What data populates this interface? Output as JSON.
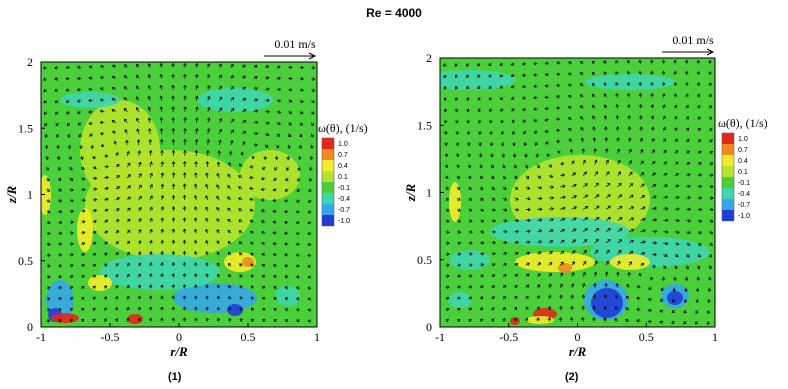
{
  "figure_title": "Re = 4000",
  "chart_data": [
    {
      "type": "heatmap",
      "panel_label": "(1)",
      "xlabel": "r/R",
      "ylabel": "z/R",
      "xlim": [
        -1,
        1
      ],
      "ylim": [
        0,
        2
      ],
      "x_ticks": [
        "-1",
        "-0.5",
        "0",
        "0.5",
        "1"
      ],
      "y_ticks": [
        "0",
        "0.5",
        "1",
        "1.5",
        "2"
      ],
      "vector_scale_label": "0.01 m/s",
      "colorbar": {
        "title": "ω(θ), (1/s)",
        "levels": [
          "1.0",
          "0.7",
          "0.4",
          "0.1",
          "-0.1",
          "-0.4",
          "-0.7",
          "-1.0"
        ],
        "colors": [
          "#e3271b",
          "#f08a1e",
          "#f2ec2a",
          "#b6e32e",
          "#4bcf3a",
          "#3ed6b0",
          "#36a7ea",
          "#1f3ed8"
        ]
      },
      "grid": false
    },
    {
      "type": "heatmap",
      "panel_label": "(2)",
      "xlabel": "r/R",
      "ylabel": "z/R",
      "xlim": [
        -1,
        1
      ],
      "ylim": [
        0,
        2
      ],
      "x_ticks": [
        "-1",
        "-0.5",
        "0",
        "0.5",
        "1"
      ],
      "y_ticks": [
        "0",
        "0.5",
        "1",
        "1.5",
        "2"
      ],
      "vector_scale_label": "0.01 m/s",
      "colorbar": {
        "title": "ω(θ), (1/s)",
        "levels": [
          "1.0",
          "0.7",
          "0.4",
          "0.1",
          "-0.1",
          "-0.4",
          "-0.7",
          "-1.0"
        ],
        "colors": [
          "#e3271b",
          "#f08a1e",
          "#f2ec2a",
          "#b6e32e",
          "#4bcf3a",
          "#3ed6b0",
          "#36a7ea",
          "#1f3ed8"
        ]
      },
      "grid": false
    }
  ]
}
